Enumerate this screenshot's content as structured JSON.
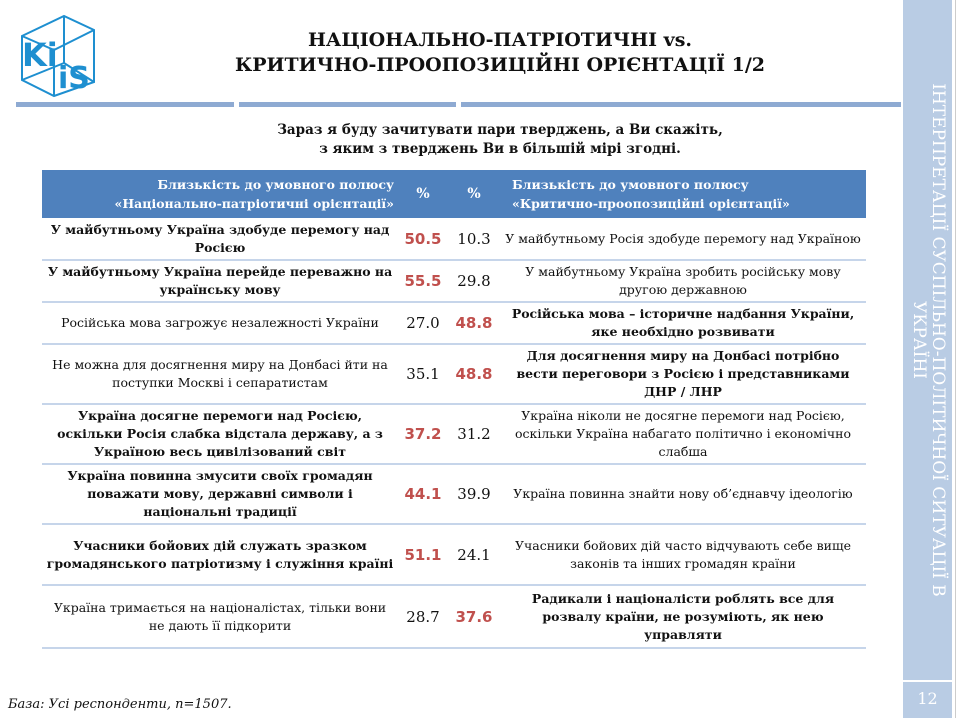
{
  "logo": {
    "text": "KIIS",
    "color": "#1e8fd0"
  },
  "title": {
    "line1": "НАЦІОНАЛЬНО-ПАТРІОТИЧНІ vs.",
    "line2": "КРИТИЧНО-ПРООПОЗИЦІЙНІ ОРІЄНТАЦІЇ 1/2"
  },
  "question": {
    "line1": "Зараз я буду зачитувати пари тверджень, а Ви скажіть,",
    "line2": "з яким з тверджень Ви в більшій мірі згодні."
  },
  "table": {
    "header": {
      "left_line1": "Близькість до умовного полюсу",
      "left_line2": "«Національно-патріотичні орієнтації»",
      "pct1": "%",
      "pct2": "%",
      "right_line1": "Близькість до умовного полюсу",
      "right_line2": "«Критично-проопозиційні орієнтації»"
    },
    "rows": [
      {
        "left": "У майбутньому Україна здобуде перемогу над Росією",
        "p1": "50.5",
        "p2": "10.3",
        "right": "У майбутньому Росія здобуде перемогу над Україною",
        "bold": "left"
      },
      {
        "left": "У майбутньому Україна перейде переважно на українську мову",
        "p1": "55.5",
        "p2": "29.8",
        "right": "У майбутньому Україна зробить російську мову другою державною",
        "bold": "left"
      },
      {
        "left": "Російська мова загрожує незалежності України",
        "p1": "27.0",
        "p2": "48.8",
        "right": "Російська мова – історичне надбання України, яке необхідно розвивати",
        "bold": "right"
      },
      {
        "left": "Не можна для досягнення миру на Донбасі йти на поступки Москві і сепаратистам",
        "p1": "35.1",
        "p2": "48.8",
        "right": "Для досягнення миру на Донбасі потрібно вести переговори з Росією і представниками ДНР / ЛНР",
        "bold": "right"
      },
      {
        "left": "Україна досягне перемоги над Росією, оскільки Росія слабка відстала державу, а з Україною весь цивілізований світ",
        "p1": "37.2",
        "p2": "31.2",
        "right": "Україна ніколи не досягне перемоги над Росією, оскільки Україна набагато політично і економічно слабша",
        "bold": "left"
      },
      {
        "left": "Україна повинна змусити своїх громадян поважати мову, державні символи і національні традиції",
        "p1": "44.1",
        "p2": "39.9",
        "right": "Україна повинна знайти нову об’єднавчу ідеологію",
        "bold": "left"
      },
      {
        "left": "Учасники бойових дій служать зразком громадянського патріотизму і служіння країні",
        "p1": "51.1",
        "p2": "24.1",
        "right": "Учасники бойових дій часто відчувають себе вище законів та інших громадян країни",
        "bold": "left"
      },
      {
        "left": "Україна тримається на націоналістах, тільки вони не дають її підкорити",
        "p1": "28.7",
        "p2": "37.6",
        "right": "Радикали і націоналісти роблять все для розвалу країни, не розуміють, як нею управляти",
        "bold": "right"
      }
    ]
  },
  "sidebar": {
    "text": "ІНТЕРПРЕТАЦІЇ СУСПІЛЬНО-ПОЛІТИЧНОЇ СИТУАЦІЇ В УКРАЇНІ",
    "page_number": "12"
  },
  "footer": {
    "base": "База: Усі респонденти, n=1507."
  },
  "colors": {
    "header_bg": "#4f81bd",
    "highlight": "#c0504d",
    "sidebar": "#b9cce4"
  }
}
